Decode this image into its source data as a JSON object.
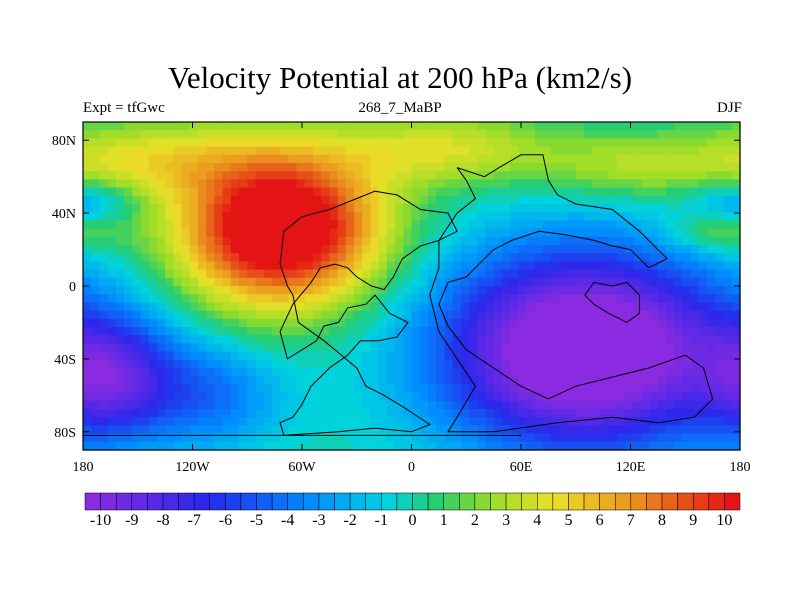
{
  "chart_data": {
    "type": "heatmap",
    "title": "Velocity Potential at 200 hPa (km2/s)",
    "subtitle_left": "Expt = tfGwc",
    "subtitle_center": "268_7_MaBP",
    "subtitle_right": "DJF",
    "x_ticks": [
      "180",
      "120W",
      "60W",
      "0",
      "60E",
      "120E",
      "180"
    ],
    "x_tick_values": [
      -180,
      -120,
      -60,
      0,
      60,
      120,
      180
    ],
    "y_ticks": [
      "80N",
      "40N",
      "0",
      "40S",
      "80S"
    ],
    "y_tick_values": [
      80,
      40,
      0,
      -40,
      -80
    ],
    "xlim": [
      -180,
      180
    ],
    "ylim": [
      -90,
      90
    ],
    "colorbar": {
      "min": -10.5,
      "max": 10.5,
      "step": 0.5,
      "labels": [
        "-10",
        "-9",
        "-8",
        "-7",
        "-6",
        "-5",
        "-4",
        "-3",
        "-2",
        "-1",
        "0",
        "1",
        "2",
        "3",
        "4",
        "5",
        "6",
        "7",
        "8",
        "9",
        "10"
      ],
      "label_values": [
        -10,
        -9,
        -8,
        -7,
        -6,
        -5,
        -4,
        -3,
        -2,
        -1,
        0,
        1,
        2,
        3,
        4,
        5,
        6,
        7,
        8,
        9,
        10
      ]
    },
    "field_centers": [
      {
        "name": "maximum",
        "lon": -70,
        "lat": 30,
        "value": 10.5
      },
      {
        "name": "minimum-east",
        "lon": 90,
        "lat": -40,
        "value": -10.5
      },
      {
        "name": "minimum-west",
        "lon": -160,
        "lat": -50,
        "value": -10.5
      }
    ]
  }
}
